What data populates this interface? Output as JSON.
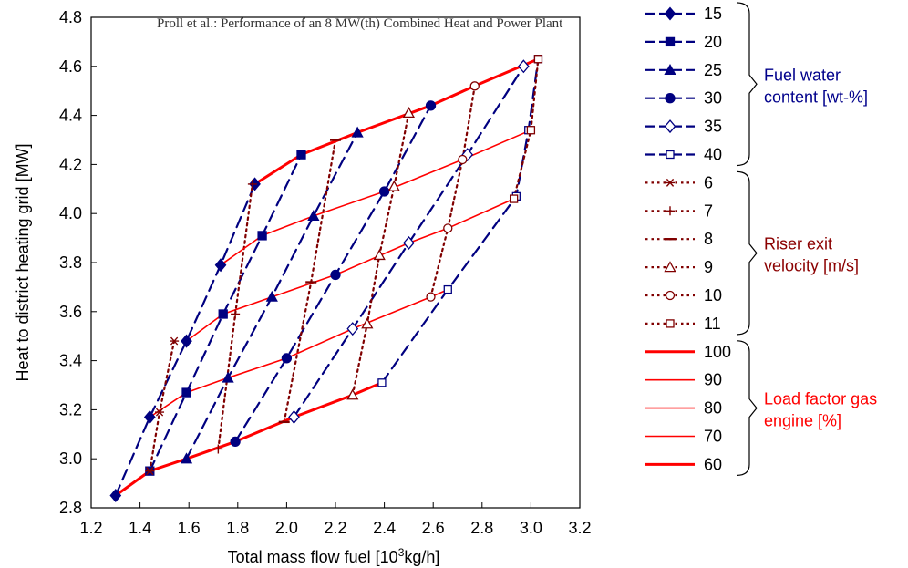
{
  "header": "Proll et al.: Performance of an 8 MW(th) Combined Heat  and Power Plant",
  "colors": {
    "fuel_water": "#000080",
    "riser": "#800000",
    "load": "#ff0000",
    "fuel_water_text": "#00008b",
    "riser_text": "#8b0000",
    "load_text": "#ff0000"
  },
  "chart_data": {
    "type": "line",
    "xlabel": "Total mass flow fuel [10",
    "xlabel_sup": "3",
    "xlabel_tail": "kg/h]",
    "ylabel": "Heat to district heating grid [MW]",
    "xlim": [
      1.2,
      3.2
    ],
    "ylim": [
      2.8,
      4.8
    ],
    "xticks": [
      "1.2",
      "1.4",
      "1.6",
      "1.8",
      "2.0",
      "2.2",
      "2.4",
      "2.6",
      "2.8",
      "3.0",
      "3.2"
    ],
    "yticks": [
      "2.8",
      "3.0",
      "3.2",
      "3.4",
      "3.6",
      "3.8",
      "4.0",
      "4.2",
      "4.4",
      "4.6",
      "4.8"
    ],
    "groups": [
      {
        "label_lines": [
          "Fuel water",
          "content [wt-%]"
        ],
        "color_key": "fuel_water_text"
      },
      {
        "label_lines": [
          "Riser exit",
          "velocity [m/s]"
        ],
        "color_key": "riser_text"
      },
      {
        "label_lines": [
          "Load factor gas",
          "engine [%]"
        ],
        "color_key": "load_text"
      }
    ],
    "series": [
      {
        "name": "15",
        "group": "fuel_water",
        "marker": "diamond-filled",
        "x": [
          1.3,
          1.44,
          1.59,
          1.73,
          1.87
        ],
        "y": [
          2.85,
          3.17,
          3.48,
          3.79,
          4.12
        ]
      },
      {
        "name": "20",
        "group": "fuel_water",
        "marker": "square-filled",
        "x": [
          1.44,
          1.59,
          1.74,
          1.9,
          2.06
        ],
        "y": [
          2.95,
          3.27,
          3.59,
          3.91,
          4.24
        ]
      },
      {
        "name": "25",
        "group": "fuel_water",
        "marker": "triangle-filled",
        "x": [
          1.59,
          1.76,
          1.94,
          2.11,
          2.29
        ],
        "y": [
          3.0,
          3.33,
          3.66,
          3.99,
          4.33
        ]
      },
      {
        "name": "30",
        "group": "fuel_water",
        "marker": "circle-filled",
        "x": [
          1.79,
          2.0,
          2.2,
          2.4,
          2.59
        ],
        "y": [
          3.07,
          3.41,
          3.75,
          4.09,
          4.44
        ]
      },
      {
        "name": "35",
        "group": "fuel_water",
        "marker": "diamond-open",
        "x": [
          2.03,
          2.27,
          2.5,
          2.74,
          2.97
        ],
        "y": [
          3.17,
          3.53,
          3.88,
          4.24,
          4.6
        ]
      },
      {
        "name": "40",
        "group": "fuel_water",
        "marker": "square-open",
        "x": [
          2.39,
          2.66,
          2.94,
          2.99,
          3.03
        ],
        "y": [
          3.31,
          3.69,
          4.07,
          4.34,
          4.63
        ]
      },
      {
        "name": "6",
        "group": "riser",
        "marker": "asterisk",
        "x": [
          1.44,
          1.48,
          1.54
        ],
        "y": [
          2.95,
          3.19,
          3.48
        ]
      },
      {
        "name": "7",
        "group": "riser",
        "marker": "plus",
        "x": [
          1.72,
          1.79,
          1.86
        ],
        "y": [
          3.04,
          3.59,
          4.12
        ]
      },
      {
        "name": "8",
        "group": "riser",
        "marker": "dash",
        "x": [
          1.99,
          2.1,
          2.2
        ],
        "y": [
          3.15,
          3.72,
          4.3
        ]
      },
      {
        "name": "9",
        "group": "riser",
        "marker": "triangle-open",
        "x": [
          2.27,
          2.33,
          2.38,
          2.44,
          2.5
        ],
        "y": [
          3.26,
          3.55,
          3.83,
          4.11,
          4.41
        ]
      },
      {
        "name": "10",
        "group": "riser",
        "marker": "circle-open",
        "x": [
          2.59,
          2.66,
          2.72,
          2.77
        ],
        "y": [
          3.66,
          3.94,
          4.22,
          4.52
        ]
      },
      {
        "name": "11",
        "group": "riser",
        "marker": "square-open",
        "x": [
          2.93,
          3.0,
          3.03
        ],
        "y": [
          4.06,
          4.34,
          4.63
        ]
      },
      {
        "name": "100",
        "group": "load",
        "marker": "none",
        "width": 3,
        "x": [
          1.87,
          2.06,
          2.29,
          2.59,
          2.77,
          3.03
        ],
        "y": [
          4.12,
          4.24,
          4.33,
          4.44,
          4.52,
          4.63
        ]
      },
      {
        "name": "90",
        "group": "load",
        "marker": "none",
        "width": 1.6,
        "x": [
          1.73,
          1.9,
          2.11,
          2.4,
          2.72,
          3.0
        ],
        "y": [
          3.79,
          3.91,
          3.99,
          4.09,
          4.22,
          4.34
        ]
      },
      {
        "name": "80",
        "group": "load",
        "marker": "none",
        "width": 1.6,
        "x": [
          1.59,
          1.74,
          1.94,
          2.2,
          2.5,
          2.66,
          2.93
        ],
        "y": [
          3.48,
          3.59,
          3.66,
          3.75,
          3.88,
          3.94,
          4.06
        ]
      },
      {
        "name": "70",
        "group": "load",
        "marker": "none",
        "width": 1.6,
        "x": [
          1.44,
          1.59,
          1.76,
          2.0,
          2.27,
          2.59,
          2.66
        ],
        "y": [
          3.17,
          3.27,
          3.33,
          3.41,
          3.53,
          3.66,
          3.69
        ]
      },
      {
        "name": "60",
        "group": "load",
        "marker": "none",
        "width": 3,
        "x": [
          1.3,
          1.44,
          1.59,
          1.79,
          2.03,
          2.27,
          2.39
        ],
        "y": [
          2.85,
          2.95,
          3.0,
          3.07,
          3.17,
          3.26,
          3.31
        ]
      }
    ]
  }
}
